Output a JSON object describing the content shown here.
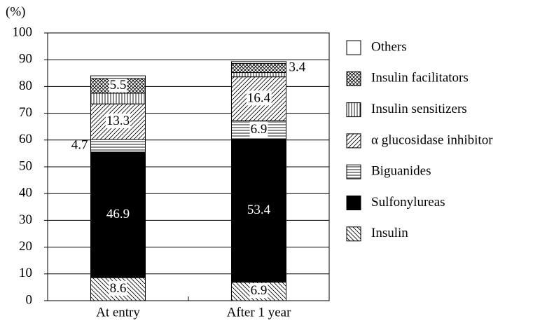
{
  "chart_data": {
    "type": "stacked_bar",
    "y_label": "(%)",
    "categories": [
      "At entry",
      "After 1 year"
    ],
    "series": [
      {
        "name": "Insulin",
        "color": "#ffffff",
        "pattern": "back-diagonal",
        "values": [
          8.6,
          6.9
        ],
        "value_labels": [
          "8.6",
          "6.9"
        ]
      },
      {
        "name": "Sulfonylureas",
        "color": "#000000",
        "pattern": "solid",
        "values": [
          46.9,
          53.4
        ],
        "value_labels": [
          "46.9",
          "53.4"
        ]
      },
      {
        "name": "Biguanides",
        "color": "#ffffff",
        "pattern": "horizontal",
        "values": [
          4.7,
          6.9
        ],
        "value_labels": [
          "4.7",
          "6.9"
        ]
      },
      {
        "name": "α glucosidase inhibitor",
        "color": "#ffffff",
        "pattern": "diagonal",
        "values": [
          13.3,
          16.4
        ],
        "value_labels": [
          "13.3",
          "16.4"
        ]
      },
      {
        "name": "Insulin sensitizers",
        "color": "#ffffff",
        "pattern": "vertical",
        "values": [
          4.0,
          1.6
        ],
        "value_labels": [
          null,
          null
        ]
      },
      {
        "name": "Insulin facilitators",
        "color": "#ffffff",
        "pattern": "cross",
        "values": [
          5.5,
          3.4
        ],
        "value_labels": [
          "5.5",
          "3.4"
        ]
      },
      {
        "name": "Others",
        "color": "#ffffff",
        "pattern": "none",
        "values": [
          1.0,
          0.7
        ],
        "value_labels": [
          null,
          null
        ]
      }
    ],
    "ylim": [
      0,
      100
    ],
    "yticks": [
      0,
      10,
      20,
      30,
      40,
      50,
      60,
      70,
      80,
      90,
      100
    ],
    "grid": true,
    "legend": "right"
  }
}
